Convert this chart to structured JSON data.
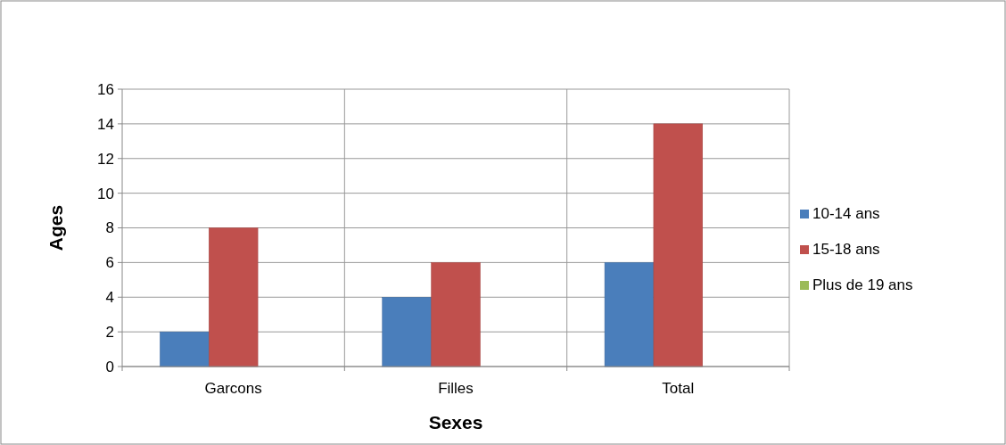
{
  "chart_data": {
    "type": "bar",
    "xlabel": "Sexes",
    "ylabel": "Ages",
    "categories": [
      "Garcons",
      "Filles",
      "Total"
    ],
    "series": [
      {
        "name": "10-14 ans",
        "color": "#4a7ebb",
        "values": [
          2,
          4,
          6
        ]
      },
      {
        "name": "15-18 ans",
        "color": "#c0504d",
        "values": [
          8,
          6,
          14
        ]
      },
      {
        "name": "Plus de 19 ans",
        "color": "#9bbb59",
        "values": [
          0,
          0,
          0
        ]
      }
    ],
    "ylim": [
      0,
      16
    ],
    "yticks": [
      0,
      2,
      4,
      6,
      8,
      10,
      12,
      14,
      16
    ],
    "grid": true,
    "legend": "right"
  }
}
